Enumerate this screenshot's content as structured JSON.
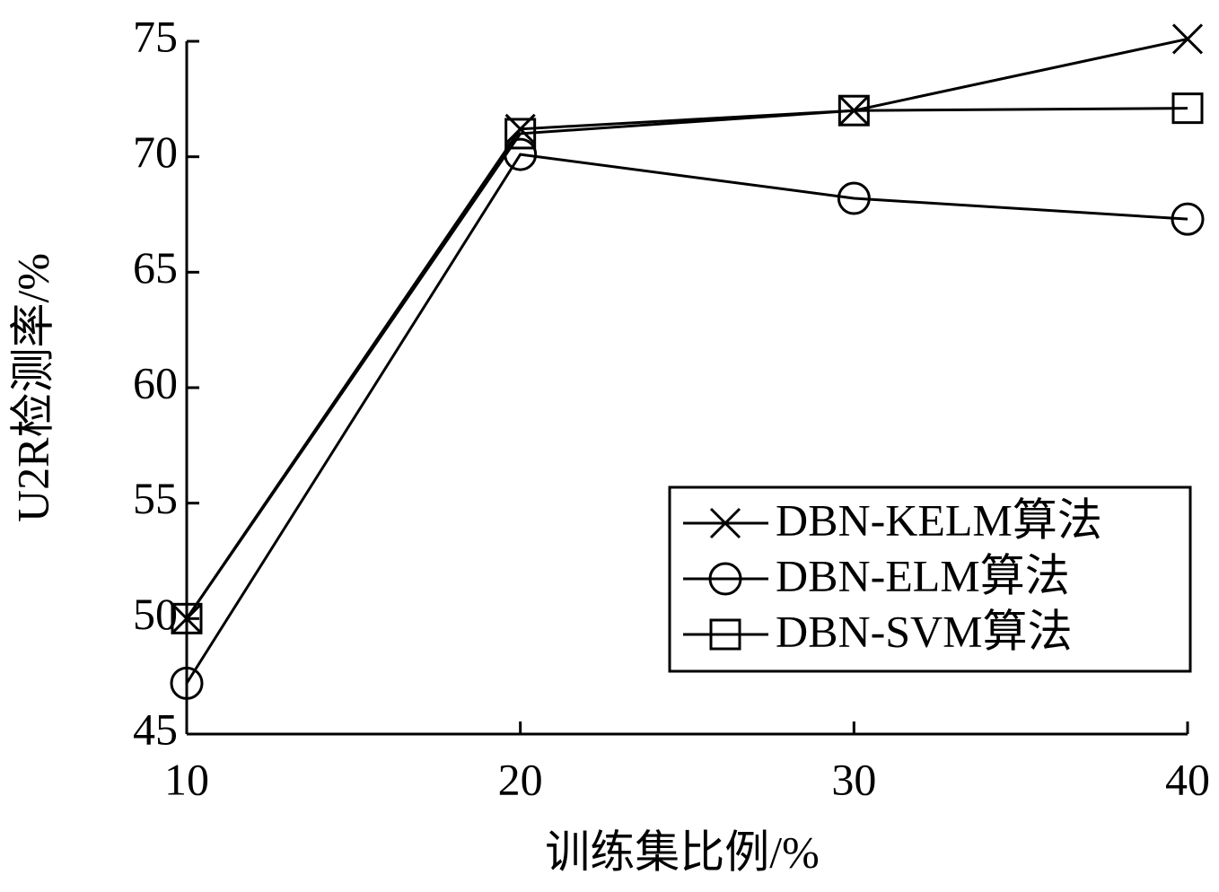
{
  "chart_data": {
    "type": "line",
    "x_label": "训练集比例/%",
    "y_label": "U2R检测率/%",
    "x": [
      10,
      20,
      30,
      40
    ],
    "series": [
      {
        "name": "DBN-KELM算法",
        "color": "#000000",
        "marker": "x",
        "values": [
          50.0,
          71.2,
          72.0,
          75.1
        ]
      },
      {
        "name": "DBN-ELM算法",
        "color": "#000000",
        "marker": "circle",
        "values": [
          47.2,
          70.1,
          68.2,
          67.3
        ]
      },
      {
        "name": "DBN-SVM算法",
        "color": "#000000",
        "marker": "square",
        "values": [
          50.0,
          71.0,
          72.0,
          72.1
        ]
      }
    ],
    "xlim": [
      10,
      40
    ],
    "xticks": [
      10,
      20,
      30,
      40
    ],
    "ylim": [
      45,
      75
    ],
    "yticks": [
      45,
      50,
      55,
      60,
      65,
      70,
      75
    ],
    "grid": false,
    "legend": "lower right"
  }
}
